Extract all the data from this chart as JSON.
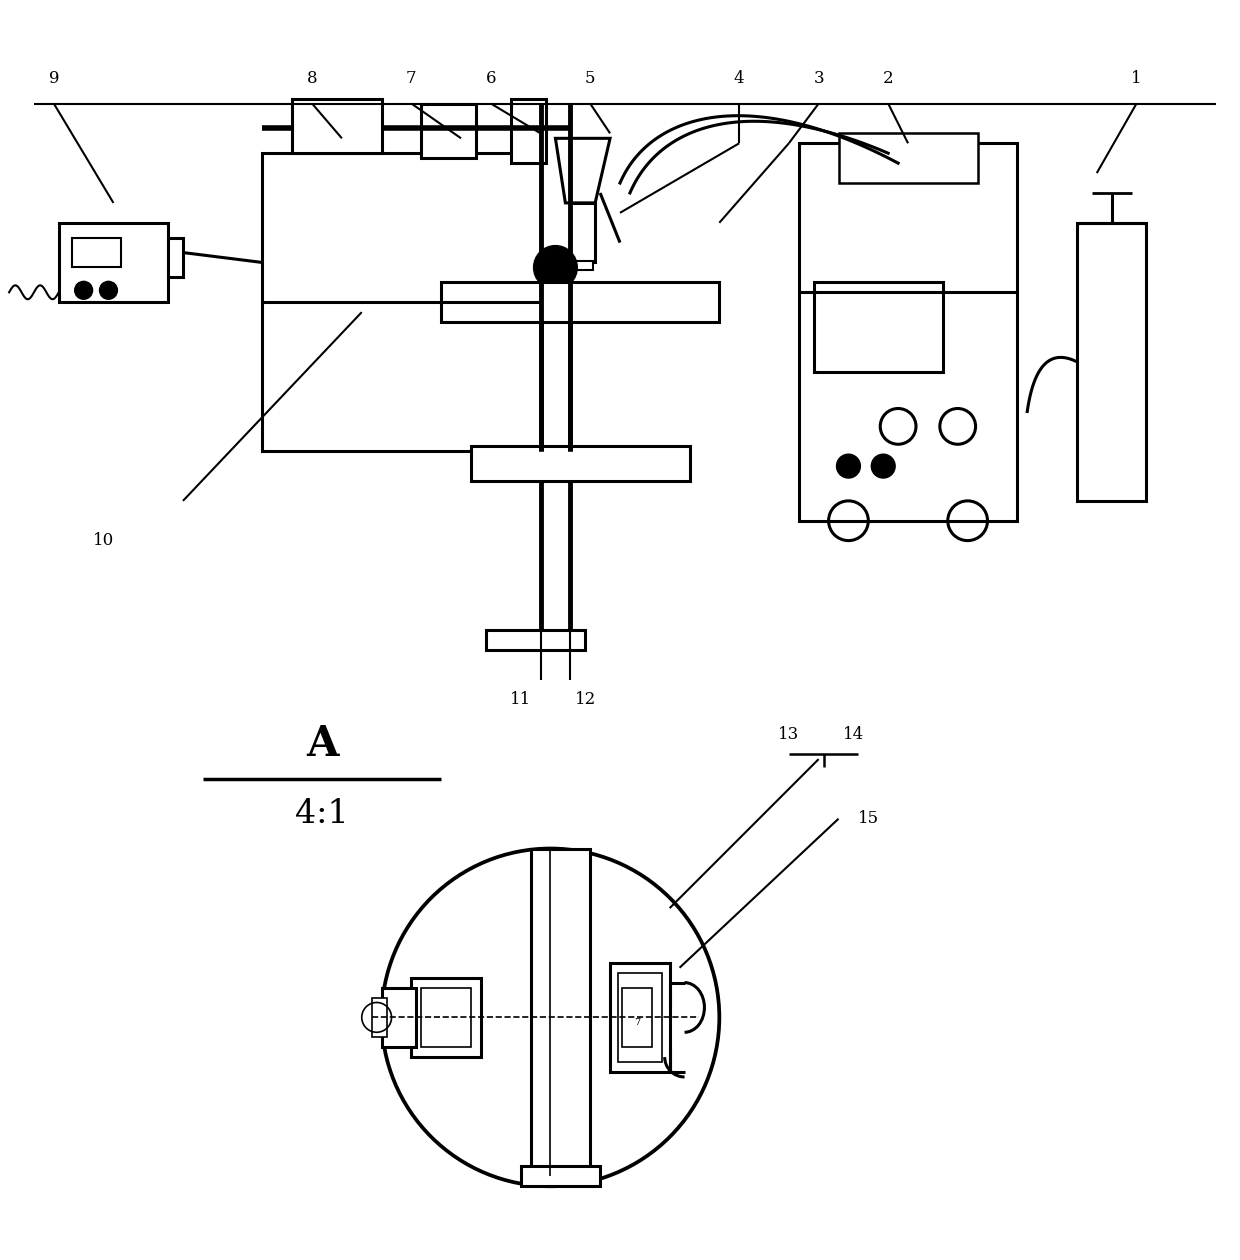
{
  "bg_color": "#ffffff",
  "line_color": "#000000",
  "lw": 2.2,
  "fig_width": 12.4,
  "fig_height": 12.6
}
